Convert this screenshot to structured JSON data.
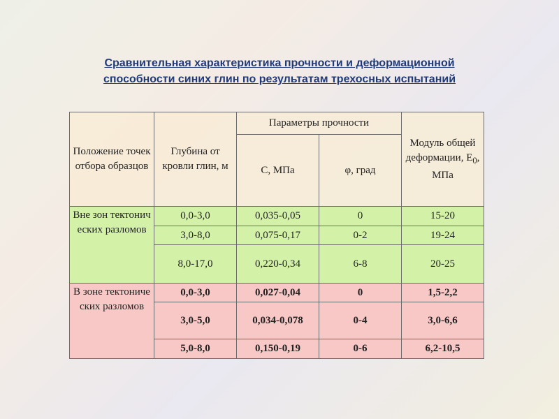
{
  "title": [
    "Сравнительная характеристика прочности и деформационной",
    "способности синих глин по результатам трехосных испытаний"
  ],
  "table": {
    "header": {
      "position": "Положение точек отбора образцов",
      "depth": "Глубина от кровли глин, м",
      "strength": "Параметры прочности",
      "c": "С, МПа",
      "phi": "φ, град",
      "modulus": {
        "text": "Модуль общей деформации, E",
        "sub": "0",
        "suffix": ", МПа"
      }
    },
    "groups": [
      {
        "label": "Вне зон тектонических разломов",
        "rows": [
          [
            "0,0-3,0",
            "0,035-0,05",
            "0",
            "15-20"
          ],
          [
            "3,0-8,0",
            "0,075-0,17",
            "0-2",
            "19-24"
          ],
          [
            "8,0-17,0",
            "0,220-0,34",
            "6-8",
            "20-25"
          ]
        ]
      },
      {
        "label": "В зоне тектонических разломов",
        "rows": [
          [
            "0,0-3,0",
            "0,027-0,04",
            "0",
            "1,5-2,2"
          ],
          [
            "3,0-5,0",
            "0,034-0,078",
            "0-4",
            "3,0-6,6"
          ],
          [
            "5,0-8,0",
            "0,150-0,19",
            "0-6",
            "6,2-10,5"
          ]
        ]
      }
    ]
  }
}
